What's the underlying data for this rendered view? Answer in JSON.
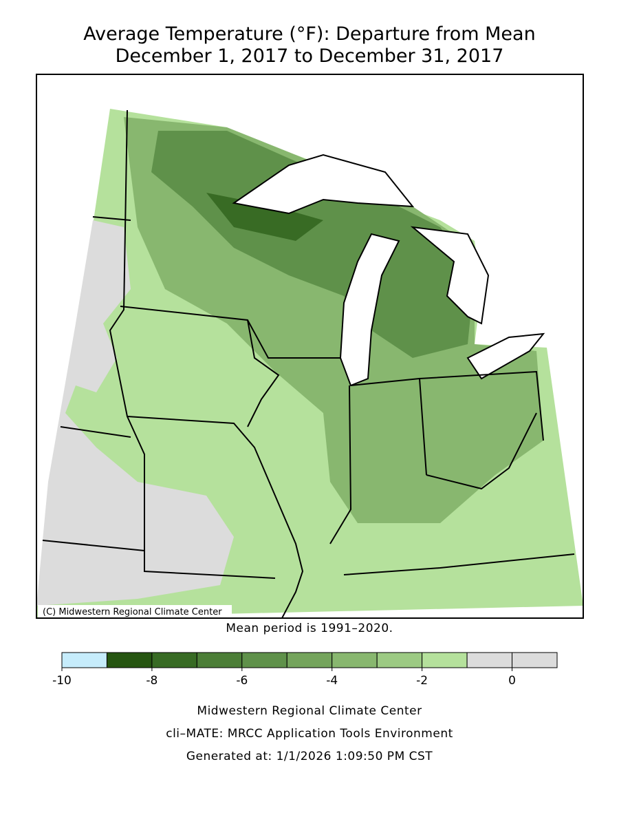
{
  "header": {
    "title": "Average Temperature (°F): Departure from Mean",
    "subtitle": "December 1, 2017 to December 31, 2017"
  },
  "map": {
    "credit": "(C) Midwestern Regional Climate Center",
    "note": "Mean period is 1991–2020."
  },
  "legend": {
    "bounds": [
      -10,
      -9,
      -8,
      -7,
      -6,
      -5,
      -4,
      -3,
      -2,
      -1,
      0,
      1
    ],
    "colors": [
      "#c6ecfb",
      "#265511",
      "#386b24",
      "#4c7e37",
      "#5f914a",
      "#74a45c",
      "#88b76f",
      "#9cca83",
      "#b5e19c",
      "#dcdcdc",
      "#dcdcdc"
    ],
    "ticks": [
      -10,
      -8,
      -6,
      -4,
      -2,
      0
    ]
  },
  "footer": {
    "lines": [
      "Midwestern Regional Climate Center",
      "cli–MATE: MRCC Application Tools Environment",
      "Generated at: 1/1/2026 1:09:50 PM CST"
    ]
  }
}
